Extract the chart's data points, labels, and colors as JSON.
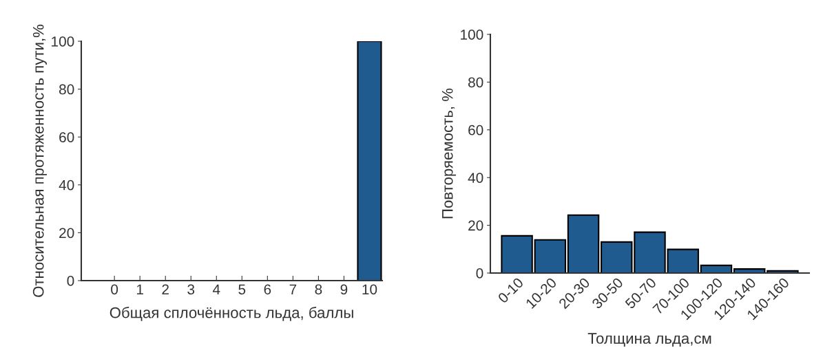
{
  "chart_data": [
    {
      "type": "bar",
      "xlabel": "Общая сплочённость льда, баллы",
      "ylabel": "Относительная протяженность пути,%",
      "categories": [
        "0",
        "1",
        "2",
        "3",
        "4",
        "5",
        "6",
        "7",
        "8",
        "9",
        "10"
      ],
      "values": [
        0,
        0,
        0,
        0,
        0,
        0,
        0,
        0,
        0,
        0,
        100
      ],
      "color": "#1f5b8e",
      "ylim": [
        0,
        100
      ],
      "yticks": [
        0,
        20,
        40,
        60,
        80,
        100
      ],
      "grid": false
    },
    {
      "type": "bar",
      "xlabel": "Толщина льда,см",
      "ylabel": "Повторяемость, %",
      "categories": [
        "0-10",
        "10-20",
        "20-30",
        "30-50",
        "50-70",
        "70-100",
        "100-120",
        "120-140",
        "140-160"
      ],
      "values": [
        15.6,
        13.9,
        24.3,
        13,
        17.1,
        9.9,
        3.2,
        1.7,
        0.9
      ],
      "color": "#1f5b8e",
      "ylim": [
        0,
        100
      ],
      "yticks": [
        0,
        20,
        40,
        60,
        80,
        100
      ],
      "grid": false
    }
  ]
}
